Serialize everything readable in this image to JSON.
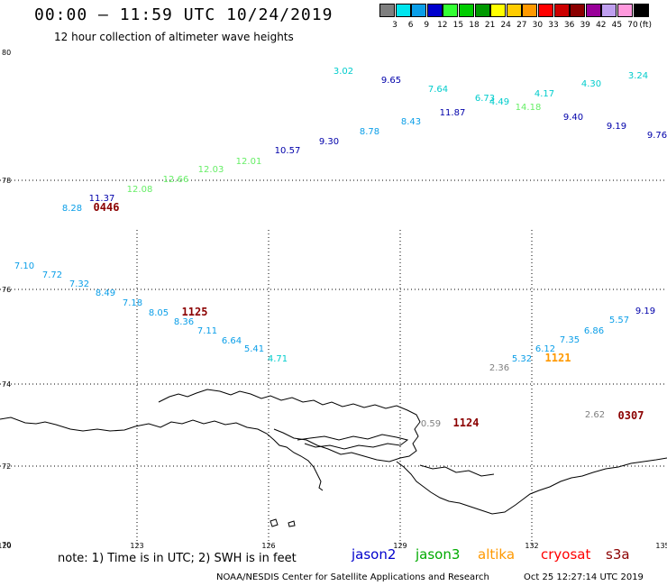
{
  "header": {
    "title": "00:00 – 11:59 UTC 10/24/2019",
    "subtitle": "12 hour collection of altimeter wave heights"
  },
  "color_scale": {
    "unit": "(ft)",
    "bins": [
      {
        "label": "3",
        "color": "#7f7f7f"
      },
      {
        "label": "6",
        "color": "#00e5ee"
      },
      {
        "label": "9",
        "color": "#0a9ee8"
      },
      {
        "label": "12",
        "color": "#0000cd"
      },
      {
        "label": "15",
        "color": "#33ff33"
      },
      {
        "label": "18",
        "color": "#00cc00"
      },
      {
        "label": "21",
        "color": "#009900"
      },
      {
        "label": "24",
        "color": "#ffff00"
      },
      {
        "label": "27",
        "color": "#ffcc00"
      },
      {
        "label": "30",
        "color": "#ff9900"
      },
      {
        "label": "33",
        "color": "#ff0000"
      },
      {
        "label": "36",
        "color": "#cc0000"
      },
      {
        "label": "39",
        "color": "#8b0000"
      },
      {
        "label": "42",
        "color": "#990099"
      },
      {
        "label": "45",
        "color": "#bf9fef"
      },
      {
        "label": "70",
        "color": "#ff99dd"
      },
      {
        "label": "",
        "color": "#000000"
      }
    ]
  },
  "map": {
    "lat_labels": [
      "80",
      "78",
      "76",
      "74",
      "72",
      "70"
    ],
    "lon_labels": [
      "120",
      "123",
      "126",
      "129",
      "132",
      "135"
    ]
  },
  "observations": [
    {
      "v": "3.02",
      "c": "#00cccc"
    },
    {
      "v": "9.65",
      "c": "#0000aa"
    },
    {
      "v": "7.64",
      "c": "#00cccc"
    },
    {
      "v": "6.73",
      "c": "#00cccc"
    },
    {
      "v": "4.49",
      "c": "#00cccc"
    },
    {
      "v": "4.17",
      "c": "#00cccc"
    },
    {
      "v": "4.30",
      "c": "#00cccc"
    },
    {
      "v": "3.24",
      "c": "#00cccc"
    },
    {
      "v": "14.18",
      "c": "#66ee66"
    },
    {
      "v": "11.87",
      "c": "#0000aa"
    },
    {
      "v": "8.43",
      "c": "#0a9ee8"
    },
    {
      "v": "9.40",
      "c": "#0000aa"
    },
    {
      "v": "9.19",
      "c": "#0000aa"
    },
    {
      "v": "9.76",
      "c": "#0000aa"
    },
    {
      "v": "8.78",
      "c": "#0a9ee8"
    },
    {
      "v": "9.30",
      "c": "#0000aa"
    },
    {
      "v": "10.57",
      "c": "#0000aa"
    },
    {
      "v": "12.01",
      "c": "#66ee66"
    },
    {
      "v": "12.03",
      "c": "#66ee66"
    },
    {
      "v": "12.66",
      "c": "#66ee66"
    },
    {
      "v": "12.08",
      "c": "#66ee66"
    },
    {
      "v": "11.37",
      "c": "#0000aa"
    },
    {
      "v": "8.28",
      "c": "#0a9ee8"
    },
    {
      "v": "7.10",
      "c": "#0a9ee8"
    },
    {
      "v": "7.72",
      "c": "#0a9ee8"
    },
    {
      "v": "7.32",
      "c": "#0a9ee8"
    },
    {
      "v": "8.49",
      "c": "#0a9ee8"
    },
    {
      "v": "7.18",
      "c": "#0a9ee8"
    },
    {
      "v": "8.05",
      "c": "#0a9ee8"
    },
    {
      "v": "8.36",
      "c": "#0a9ee8"
    },
    {
      "v": "7.11",
      "c": "#0a9ee8"
    },
    {
      "v": "6.64",
      "c": "#0a9ee8"
    },
    {
      "v": "5.41",
      "c": "#0a9ee8"
    },
    {
      "v": "4.71",
      "c": "#00cccc"
    },
    {
      "v": "2.36",
      "c": "#7f7f7f"
    },
    {
      "v": "5.32",
      "c": "#0a9ee8"
    },
    {
      "v": "6.12",
      "c": "#0a9ee8"
    },
    {
      "v": "7.35",
      "c": "#0a9ee8"
    },
    {
      "v": "6.86",
      "c": "#0a9ee8"
    },
    {
      "v": "5.57",
      "c": "#0a9ee8"
    },
    {
      "v": "9.19",
      "c": "#0000aa"
    },
    {
      "v": "0.59",
      "c": "#7f7f7f"
    },
    {
      "v": "2.62",
      "c": "#7f7f7f"
    }
  ],
  "pass_times": [
    {
      "t": "0446",
      "c": "#8b0000"
    },
    {
      "t": "1125",
      "c": "#8b0000"
    },
    {
      "t": "1121",
      "c": "#ff9900"
    },
    {
      "t": "1124",
      "c": "#8b0000"
    },
    {
      "t": "0307",
      "c": "#8b0000"
    }
  ],
  "footer": {
    "note": "note: 1) Time is in UTC; 2) SWH is in feet",
    "satellites": [
      {
        "name": "jason2",
        "color": "#0000cc"
      },
      {
        "name": "jason3",
        "color": "#00aa00"
      },
      {
        "name": "altika",
        "color": "#ff9900"
      },
      {
        "name": "cryosat",
        "color": "#ff0000"
      },
      {
        "name": "s3a",
        "color": "#8b0000"
      }
    ],
    "credit": "NOAA/NESDIS Center for Satellite Applications and Research",
    "timestamp": "Oct 25 12:27:14 UTC 2019"
  }
}
